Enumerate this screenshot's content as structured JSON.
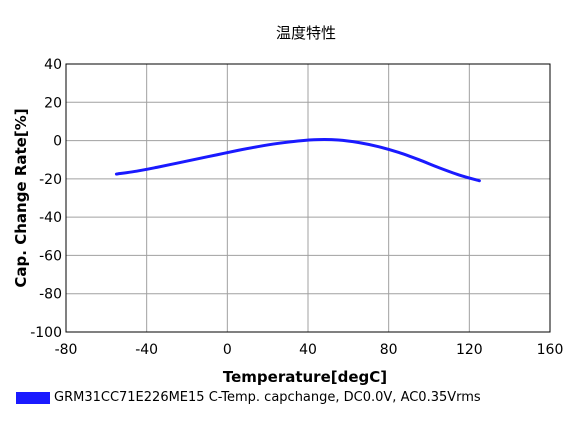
{
  "chart_data": {
    "type": "line",
    "title": "温度特性",
    "xlabel": "Temperature[degC]",
    "ylabel": "Cap. Change Rate[%]",
    "xlim": [
      -80,
      160
    ],
    "ylim": [
      -100,
      40
    ],
    "xticks": [
      -80,
      -40,
      0,
      40,
      80,
      120,
      160
    ],
    "yticks": [
      40,
      20,
      0,
      -20,
      -40,
      -60,
      -80,
      -100
    ],
    "grid": true,
    "legend_position": "bottom-left",
    "series": [
      {
        "name": "GRM31CC71E226ME15 C-Temp. capchange, DC0.0V, AC0.35Vrms",
        "color": "#1a1aff",
        "x": [
          -55,
          -45,
          -35,
          -25,
          -15,
          -5,
          5,
          15,
          25,
          35,
          45,
          55,
          65,
          75,
          85,
          95,
          105,
          115,
          125
        ],
        "y": [
          -17.5,
          -16.0,
          -14.0,
          -11.8,
          -9.6,
          -7.4,
          -5.2,
          -3.2,
          -1.5,
          -0.2,
          0.5,
          0.3,
          -1.0,
          -3.2,
          -6.2,
          -10.0,
          -14.2,
          -18.0,
          -21.0
        ]
      }
    ]
  }
}
